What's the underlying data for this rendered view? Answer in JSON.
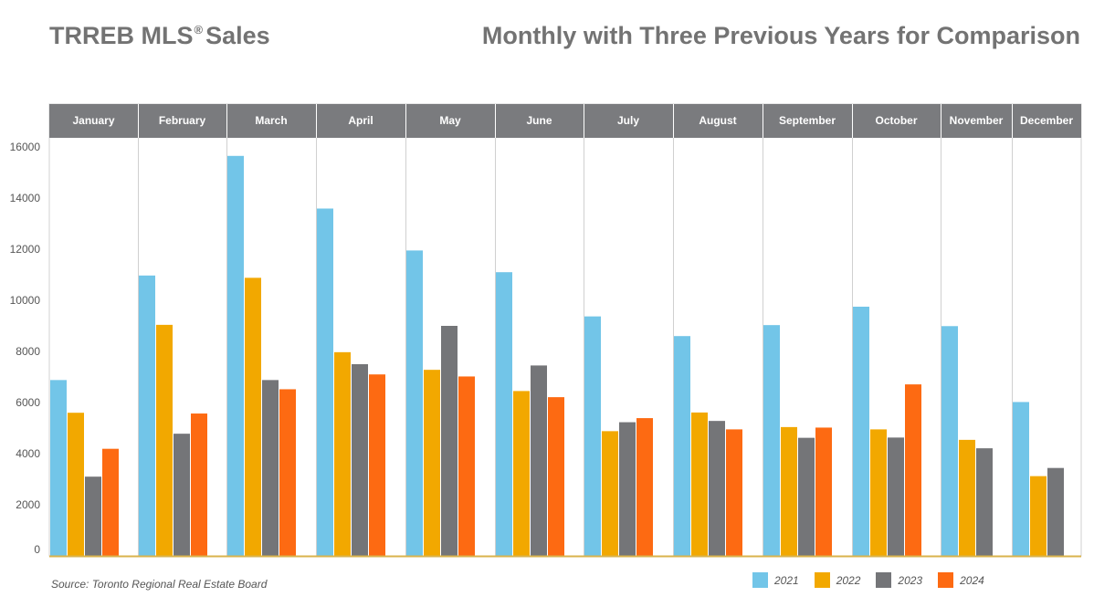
{
  "title": {
    "main": "TRREB MLS",
    "registered_mark": "®",
    "main_suffix": "Sales",
    "right": "Monthly with Three Previous Years for Comparison"
  },
  "source": "Source: Toronto Regional Real Estate Board",
  "colors": {
    "2021": "#72c5e8",
    "2022": "#f2a800",
    "2023": "#747578",
    "2024": "#fd6a12",
    "header_bg": "#7a7b7e",
    "header_text": "#ffffff",
    "axis_text": "#555555",
    "baseline": "#d9b34d"
  },
  "chart_data": {
    "type": "bar",
    "categories": [
      "January",
      "February",
      "March",
      "April",
      "May",
      "June",
      "July",
      "August",
      "September",
      "October",
      "November",
      "December"
    ],
    "series": [
      {
        "name": "2021",
        "values": [
          6880,
          10970,
          15650,
          13590,
          11950,
          11100,
          9370,
          8600,
          9030,
          9750,
          8990,
          6020
        ]
      },
      {
        "name": "2022",
        "values": [
          5600,
          9040,
          10880,
          7970,
          7280,
          6450,
          4880,
          5610,
          5040,
          4950,
          4540,
          3120
        ]
      },
      {
        "name": "2023",
        "values": [
          3100,
          4780,
          6880,
          7500,
          9000,
          7450,
          5230,
          5280,
          4620,
          4630,
          4210,
          3440
        ]
      },
      {
        "name": "2024",
        "values": [
          4190,
          5570,
          6520,
          7100,
          7020,
          6210,
          5390,
          4950,
          5020,
          6710,
          null,
          null
        ]
      }
    ],
    "ylim": [
      0,
      16000
    ],
    "yticks": [
      0,
      2000,
      4000,
      6000,
      8000,
      10000,
      12000,
      14000,
      16000
    ],
    "legend": "bottom-right",
    "grid": false
  }
}
